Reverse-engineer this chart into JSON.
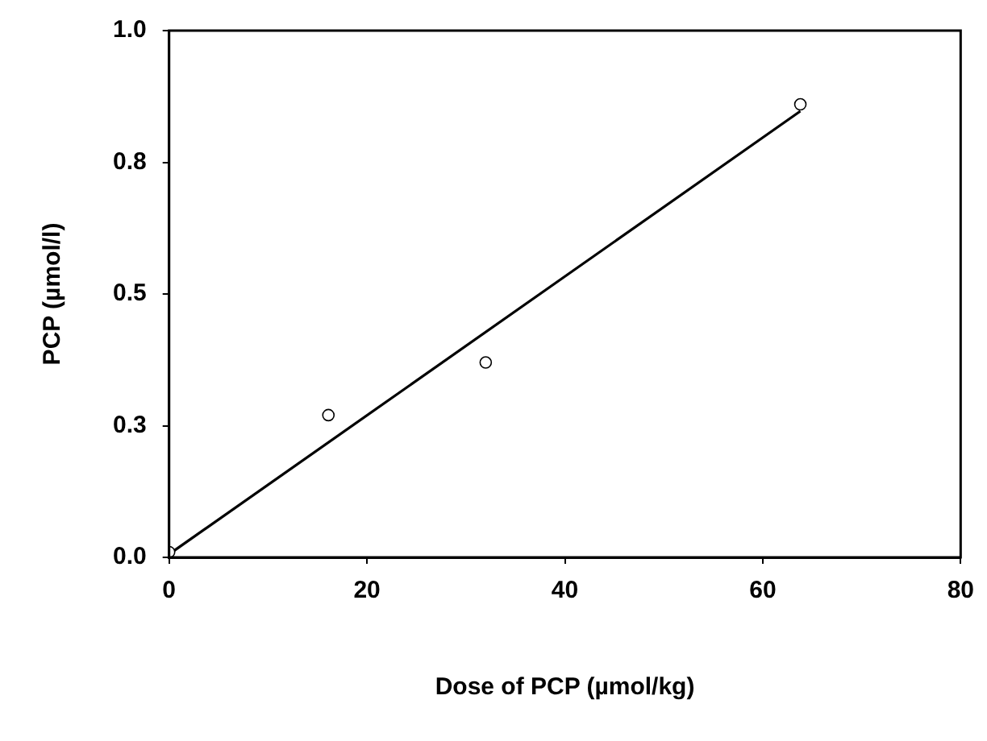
{
  "chart_data": {
    "type": "scatter",
    "xlabel": "Dose of PCP (µmol/kg)",
    "ylabel": "PCP (µmol/l)",
    "xlim": [
      0,
      80
    ],
    "xticks": [
      0,
      20,
      40,
      60,
      80
    ],
    "ylim": [
      0,
      1
    ],
    "yticks": [
      {
        "value": 0,
        "label": "0.0"
      },
      {
        "value": 0.25,
        "label": "0.3"
      },
      {
        "value": 0.5,
        "label": "0.5"
      },
      {
        "value": 0.75,
        "label": "0.8"
      },
      {
        "value": 1,
        "label": "1.0"
      }
    ],
    "grid": false,
    "legend": false,
    "marker": "circle",
    "series": [
      {
        "color": "#000000",
        "x": [
          0,
          16.1,
          32,
          63.8
        ],
        "values": [
          0.01,
          0.27,
          0.37,
          0.86
        ]
      },
      {
        "type": "line",
        "color": "#000000",
        "x": [
          0,
          63.8
        ],
        "values": [
          0.006,
          0.847
        ],
        "marker": "none",
        "line_style": "solid"
      }
    ]
  }
}
